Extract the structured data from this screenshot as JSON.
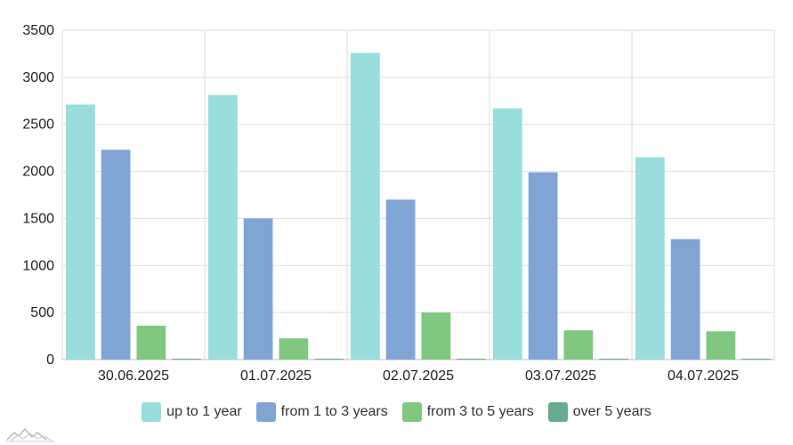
{
  "chart_data": {
    "type": "bar",
    "categories": [
      "30.06.2025",
      "01.07.2025",
      "02.07.2025",
      "03.07.2025",
      "04.07.2025"
    ],
    "series": [
      {
        "name": "up to 1 year",
        "color": "#99dddd",
        "values": [
          2710,
          2810,
          3260,
          2670,
          2150
        ]
      },
      {
        "name": "from 1 to 3 years",
        "color": "#80a4d4",
        "values": [
          2230,
          1500,
          1700,
          1990,
          1280
        ]
      },
      {
        "name": "from 3 to 5 years",
        "color": "#80c880",
        "values": [
          360,
          225,
          500,
          310,
          300
        ]
      },
      {
        "name": "over 5 years",
        "color": "#66aa90",
        "values": [
          5,
          5,
          5,
          5,
          5
        ]
      }
    ],
    "yticks": [
      "0",
      "500",
      "1000",
      "1500",
      "2000",
      "2500",
      "3000",
      "3500"
    ],
    "ylim": [
      0,
      3500
    ],
    "grid": true,
    "legend": "bottom-center",
    "title": "",
    "xlabel": "",
    "ylabel": ""
  },
  "colors": {
    "grid": "#dddddd",
    "axis": "#bbbbbb",
    "text": "#222222"
  },
  "logo": {
    "icon": "mountain-logo-icon"
  }
}
